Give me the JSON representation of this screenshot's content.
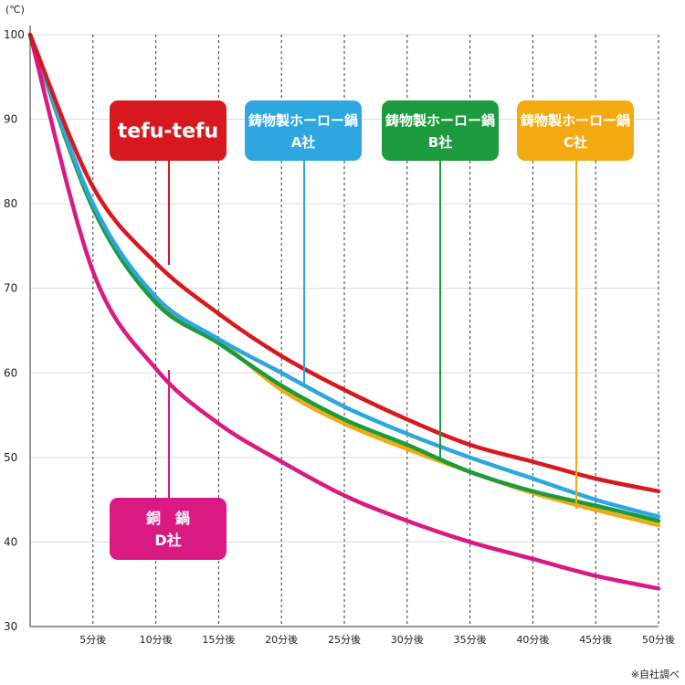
{
  "chart_data": {
    "type": "line",
    "unit_label": "(℃)",
    "note": "※自社調べ",
    "x": [
      0,
      5,
      10,
      15,
      20,
      25,
      30,
      35,
      40,
      45,
      50
    ],
    "x_tick_labels": [
      "5分後",
      "10分後",
      "15分後",
      "20分後",
      "25分後",
      "30分後",
      "35分後",
      "40分後",
      "45分後",
      "50分後"
    ],
    "y_ticks": [
      30,
      40,
      50,
      60,
      70,
      80,
      90,
      100
    ],
    "ylim": [
      30,
      100
    ],
    "xlim": [
      0,
      50
    ],
    "grid": {
      "horizontal": true,
      "vertical_dashed": true
    },
    "series": [
      {
        "name": "tefu-tefu",
        "color": "#d7191f",
        "values": [
          100,
          82,
          73,
          67,
          62,
          58,
          54.5,
          51.5,
          49.5,
          47.5,
          46
        ]
      },
      {
        "name": "鋳物製ホーロー鍋 A社",
        "color": "#2ea6e0",
        "values": [
          100,
          80,
          69,
          64,
          60,
          56,
          52.8,
          50,
          47.5,
          45,
          43
        ]
      },
      {
        "name": "鋳物製ホーロー鍋 B社",
        "color": "#1d9a3d",
        "values": [
          100,
          79.5,
          68.3,
          63.5,
          58.5,
          54.5,
          51.5,
          48.3,
          46,
          44.3,
          42.5
        ]
      },
      {
        "name": "鋳物製ホーロー鍋 C社",
        "color": "#f3aa10",
        "values": [
          100,
          79.5,
          68.5,
          63.8,
          58,
          54,
          51,
          48.3,
          45.8,
          43.8,
          42
        ]
      },
      {
        "name": "銅 鍋 D社",
        "color": "#d91a82",
        "values": [
          100,
          72,
          60.5,
          54,
          49.5,
          45.5,
          42.5,
          40,
          38,
          36,
          34.5
        ]
      }
    ],
    "labels": [
      {
        "series": 0,
        "lines": [
          "tefu-tefu"
        ]
      },
      {
        "series": 1,
        "lines": [
          "鋳物製ホーロー鍋",
          "A社"
        ]
      },
      {
        "series": 2,
        "lines": [
          "鋳物製ホーロー鍋",
          "B社"
        ]
      },
      {
        "series": 3,
        "lines": [
          "鋳物製ホーロー鍋",
          "C社"
        ]
      },
      {
        "series": 4,
        "lines": [
          "銅　鍋",
          "D社"
        ]
      }
    ]
  }
}
